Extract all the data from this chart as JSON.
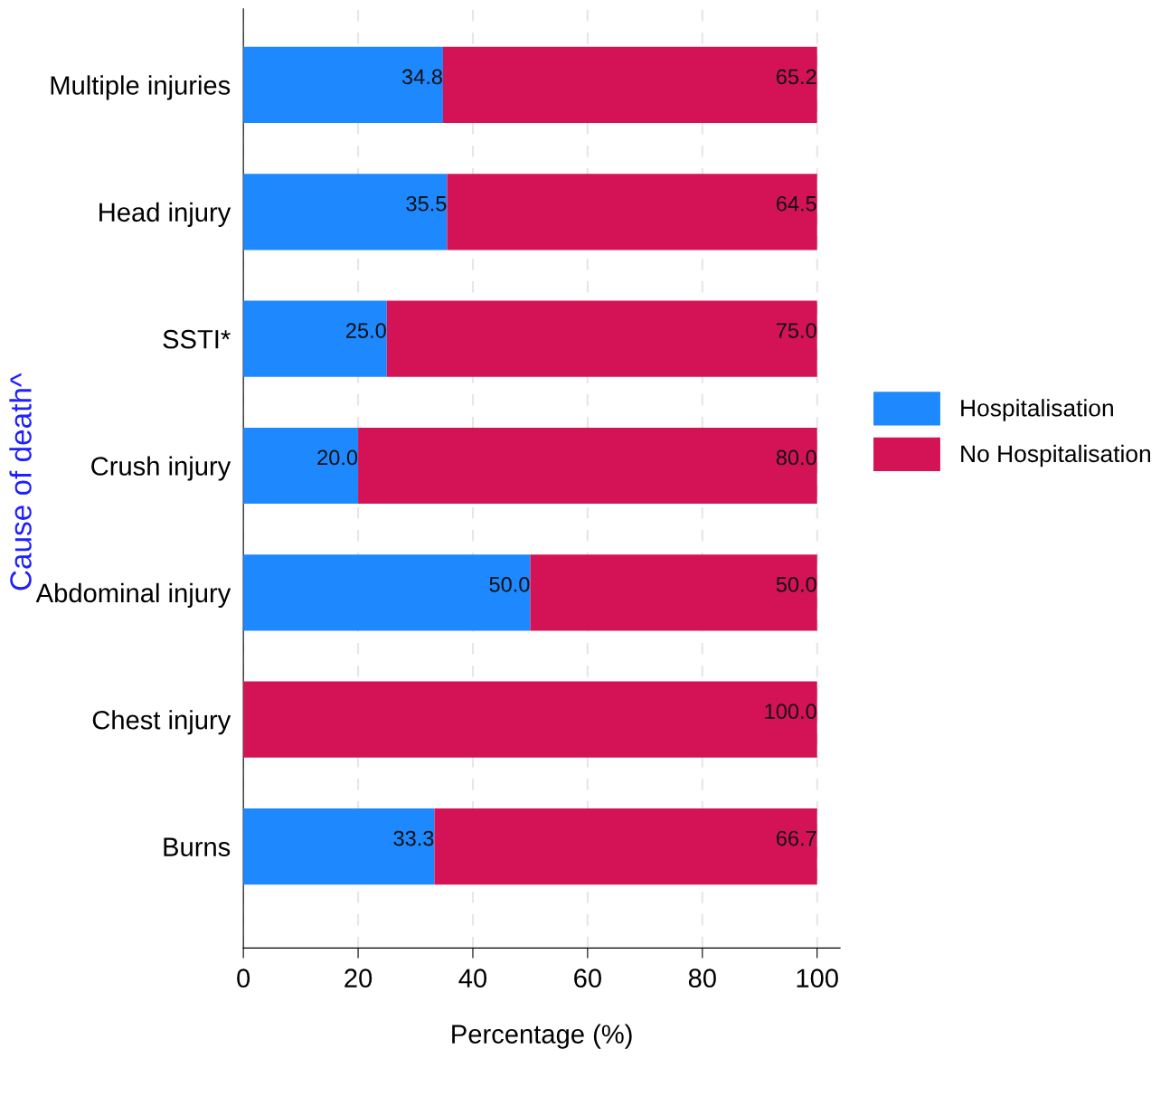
{
  "chart_data": {
    "type": "bar",
    "orientation": "horizontal",
    "stacked": true,
    "xlabel": "Percentage (%)",
    "ylabel": "Cause of death^",
    "categories": [
      "Multiple injuries",
      "Head injury",
      "SSTI*",
      "Crush injury",
      "Abdominal injury",
      "Chest injury",
      "Burns"
    ],
    "series": [
      {
        "name": "Hospitalisation",
        "color": "#1e88ff",
        "values": [
          34.8,
          35.5,
          25.0,
          20.0,
          50.0,
          0,
          33.3
        ],
        "value_labels": [
          "34.8",
          "35.5",
          "25.0",
          "20.0",
          "50.0",
          null,
          "33.3"
        ]
      },
      {
        "name": "No Hospitalisation",
        "color": "#d41356",
        "values": [
          65.2,
          64.5,
          75.0,
          80.0,
          50.0,
          100.0,
          66.7
        ],
        "value_labels": [
          "65.2",
          "64.5",
          "75.0",
          "80.0",
          "50.0",
          "100.0",
          "66.7"
        ]
      }
    ],
    "xlim": [
      0,
      104
    ],
    "xticks": [
      0,
      20,
      40,
      60,
      80,
      100
    ],
    "grid": "x",
    "legend": "right"
  }
}
